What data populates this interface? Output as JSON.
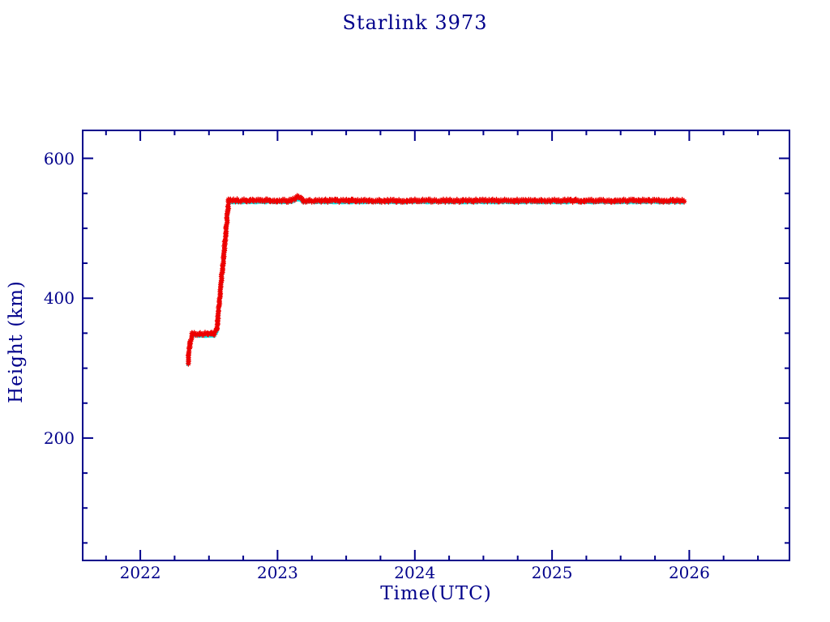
{
  "page": {
    "background": "#ffffff"
  },
  "chart_data": {
    "type": "scatter",
    "title": "Starlink 3973",
    "xlabel": "Time(UTC)",
    "ylabel": "Height (km)",
    "axis_color": "#00008B",
    "background": "#ffffff",
    "grid": false,
    "legend_position": "none",
    "xlim": [
      2021.58,
      2026.73
    ],
    "ylim": [
      25,
      640
    ],
    "xticks": {
      "major": [
        2022,
        2023,
        2024,
        2025,
        2026
      ],
      "minor_step": 0.25,
      "major_labels": [
        "2022",
        "2023",
        "2024",
        "2025",
        "2026"
      ]
    },
    "yticks": {
      "major": [
        200,
        400,
        600
      ],
      "minor_step": 50,
      "major_labels": [
        "200",
        "400",
        "600"
      ]
    },
    "series": [
      {
        "name": "height-underlay-cyan",
        "color": "#00EDED",
        "marker": "dot",
        "keypoints": [
          [
            2022.345,
            305
          ],
          [
            2022.36,
            332
          ],
          [
            2022.376,
            346
          ],
          [
            2022.535,
            346
          ],
          [
            2022.558,
            352
          ],
          [
            2022.645,
            537
          ],
          [
            2023.1,
            537
          ],
          [
            2023.148,
            542
          ],
          [
            2023.195,
            537
          ],
          [
            2025.955,
            537
          ]
        ]
      },
      {
        "name": "height-main-red",
        "color": "#ED0000",
        "marker": "asterisk",
        "keypoints": [
          [
            2022.348,
            308
          ],
          [
            2022.362,
            336
          ],
          [
            2022.378,
            349
          ],
          [
            2022.535,
            349
          ],
          [
            2022.558,
            356
          ],
          [
            2022.645,
            540
          ],
          [
            2023.1,
            539.5
          ],
          [
            2023.145,
            545
          ],
          [
            2023.19,
            539.5
          ],
          [
            2025.96,
            539.5
          ]
        ]
      }
    ]
  }
}
